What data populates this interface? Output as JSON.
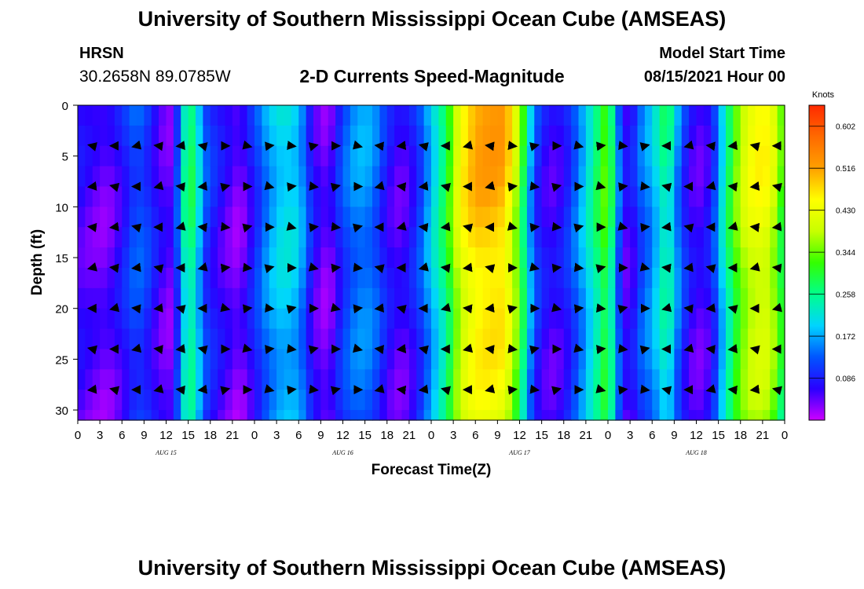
{
  "header": {
    "title": "University of Southern Mississippi Ocean Cube (AMSEAS)",
    "footer_title": "University of Southern Mississippi Ocean Cube (AMSEAS)",
    "station_name": "HRSN",
    "station_coords": "30.2658N  89.0785W",
    "subtitle": "2-D Currents Speed-Magnitude",
    "model_start_label": "Model Start Time",
    "model_start_value": "08/15/2021 Hour 00"
  },
  "chart_data": {
    "type": "heatmap",
    "title": "2-D Currents Speed-Magnitude",
    "xlabel": "Forecast Time(Z)",
    "ylabel": "Depth (ft)",
    "xlim": [
      0,
      96
    ],
    "ylim": [
      31,
      0
    ],
    "x_tick_labels": [
      "0",
      "3",
      "6",
      "9",
      "12",
      "15",
      "18",
      "21",
      "0",
      "3",
      "6",
      "9",
      "12",
      "15",
      "18",
      "21",
      "0",
      "3",
      "6",
      "9",
      "12",
      "15",
      "18",
      "21",
      "0",
      "3",
      "6",
      "9",
      "12",
      "15",
      "18",
      "21",
      "0"
    ],
    "day_labels": [
      "AUG 15",
      "AUG 16",
      "AUG 17",
      "AUG 18"
    ],
    "y_ticks": [
      0,
      5,
      10,
      15,
      20,
      25,
      30
    ],
    "colorbar": {
      "unit": "Knots",
      "ticks": [
        0.086,
        0.172,
        0.258,
        0.344,
        0.43,
        0.516,
        0.602
      ],
      "min": 0.0,
      "max": 0.645
    },
    "speed_profile_by_hour": [
      [
        0,
        0.07
      ],
      [
        2,
        0.05
      ],
      [
        4,
        0.04
      ],
      [
        6,
        0.08
      ],
      [
        8,
        0.14
      ],
      [
        10,
        0.1
      ],
      [
        11,
        0.06
      ],
      [
        12,
        0.05
      ],
      [
        13,
        0.04
      ],
      [
        14,
        0.2
      ],
      [
        15,
        0.3
      ],
      [
        16,
        0.26
      ],
      [
        17,
        0.14
      ],
      [
        18,
        0.1
      ],
      [
        20,
        0.06
      ],
      [
        22,
        0.03
      ],
      [
        24,
        0.1
      ],
      [
        26,
        0.18
      ],
      [
        28,
        0.22
      ],
      [
        30,
        0.2
      ],
      [
        32,
        0.07
      ],
      [
        34,
        0.03
      ],
      [
        36,
        0.12
      ],
      [
        38,
        0.17
      ],
      [
        40,
        0.16
      ],
      [
        42,
        0.08
      ],
      [
        44,
        0.05
      ],
      [
        46,
        0.1
      ],
      [
        48,
        0.2
      ],
      [
        50,
        0.3
      ],
      [
        52,
        0.46
      ],
      [
        54,
        0.52
      ],
      [
        56,
        0.53
      ],
      [
        58,
        0.52
      ],
      [
        60,
        0.36
      ],
      [
        62,
        0.12
      ],
      [
        64,
        0.06
      ],
      [
        66,
        0.08
      ],
      [
        68,
        0.16
      ],
      [
        70,
        0.26
      ],
      [
        72,
        0.36
      ],
      [
        73,
        0.2
      ],
      [
        74,
        0.08
      ],
      [
        75,
        0.05
      ],
      [
        76,
        0.12
      ],
      [
        78,
        0.18
      ],
      [
        80,
        0.28
      ],
      [
        82,
        0.12
      ],
      [
        84,
        0.05
      ],
      [
        86,
        0.08
      ],
      [
        88,
        0.26
      ],
      [
        90,
        0.4
      ],
      [
        92,
        0.46
      ],
      [
        94,
        0.45
      ],
      [
        96,
        0.3
      ]
    ],
    "vector_depths": [
      4,
      8,
      12,
      16,
      20,
      24,
      28
    ],
    "vector_hours": [
      2,
      5,
      8,
      11,
      14,
      17,
      20,
      23,
      26,
      29,
      32,
      35,
      38,
      41,
      44,
      47,
      50,
      53,
      56,
      59,
      62,
      65,
      68,
      71,
      74,
      77,
      80,
      83,
      86,
      89,
      92,
      95
    ],
    "dominant_direction": "west/east alternating with tide",
    "grid": false
  },
  "colors": {
    "colormap": [
      "#cc00ff",
      "#2a00ff",
      "#0055ff",
      "#00d4ff",
      "#00ff8c",
      "#33ff00",
      "#c8ff00",
      "#ffff00",
      "#ffa000",
      "#ff6a00",
      "#ff2a00"
    ],
    "arrow": "#000000"
  }
}
